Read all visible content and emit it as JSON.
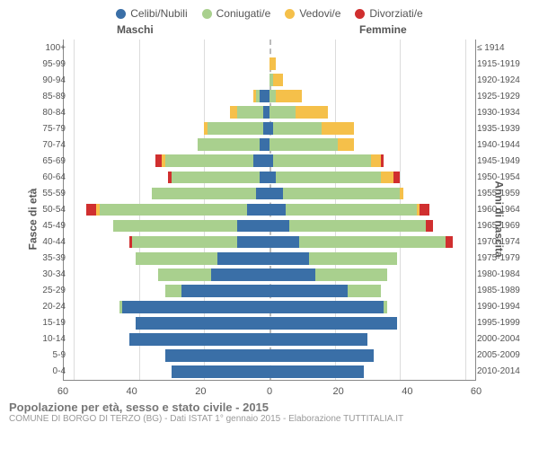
{
  "legend": [
    {
      "label": "Celibi/Nubili",
      "color": "#3a6fa7"
    },
    {
      "label": "Coniugati/e",
      "color": "#a9d08e"
    },
    {
      "label": "Vedovi/e",
      "color": "#f5c04a"
    },
    {
      "label": "Divorziati/e",
      "color": "#d02f2f"
    }
  ],
  "header_male": "Maschi",
  "header_female": "Femmine",
  "y_axis_left_title": "Fasce di età",
  "y_axis_right_title": "Anni di nascita",
  "footer_title": "Popolazione per età, sesso e stato civile - 2015",
  "footer_sub": "COMUNE DI BORGO DI TERZO (BG) - Dati ISTAT 1° gennaio 2015 - Elaborazione TUTTITALIA.IT",
  "x_ticks": [
    60,
    40,
    20,
    0,
    20,
    40,
    60
  ],
  "x_max": 63,
  "colors": {
    "axis": "#888888",
    "grid": "#dcdcdc",
    "background": "#ffffff",
    "text": "#555555",
    "centerline": "#bbbbbb"
  },
  "rows": [
    {
      "age": "100+",
      "birth": "≤ 1914",
      "m": [
        0,
        0,
        0,
        0
      ],
      "f": [
        0,
        0,
        0,
        0
      ]
    },
    {
      "age": "95-99",
      "birth": "1915-1919",
      "m": [
        0,
        0,
        0,
        0
      ],
      "f": [
        0,
        0,
        2,
        0
      ]
    },
    {
      "age": "90-94",
      "birth": "1920-1924",
      "m": [
        0,
        0,
        0,
        0
      ],
      "f": [
        0,
        1,
        3,
        0
      ]
    },
    {
      "age": "85-89",
      "birth": "1925-1929",
      "m": [
        3,
        1,
        1,
        0
      ],
      "f": [
        0,
        2,
        8,
        0
      ]
    },
    {
      "age": "80-84",
      "birth": "1930-1934",
      "m": [
        2,
        8,
        2,
        0
      ],
      "f": [
        0,
        8,
        10,
        0
      ]
    },
    {
      "age": "75-79",
      "birth": "1935-1939",
      "m": [
        2,
        17,
        1,
        0
      ],
      "f": [
        1,
        15,
        10,
        0
      ]
    },
    {
      "age": "70-74",
      "birth": "1940-1944",
      "m": [
        3,
        19,
        0,
        0
      ],
      "f": [
        0,
        21,
        5,
        0
      ]
    },
    {
      "age": "65-69",
      "birth": "1945-1949",
      "m": [
        5,
        27,
        1,
        2
      ],
      "f": [
        1,
        30,
        3,
        1
      ]
    },
    {
      "age": "60-64",
      "birth": "1950-1954",
      "m": [
        3,
        27,
        0,
        1
      ],
      "f": [
        2,
        32,
        4,
        2
      ]
    },
    {
      "age": "55-59",
      "birth": "1955-1959",
      "m": [
        4,
        32,
        0,
        0
      ],
      "f": [
        4,
        36,
        1,
        0
      ]
    },
    {
      "age": "50-54",
      "birth": "1960-1964",
      "m": [
        7,
        45,
        1,
        3
      ],
      "f": [
        5,
        40,
        1,
        3
      ]
    },
    {
      "age": "45-49",
      "birth": "1965-1969",
      "m": [
        10,
        38,
        0,
        0
      ],
      "f": [
        6,
        42,
        0,
        2
      ]
    },
    {
      "age": "40-44",
      "birth": "1970-1974",
      "m": [
        10,
        32,
        0,
        1
      ],
      "f": [
        9,
        45,
        0,
        2
      ]
    },
    {
      "age": "35-39",
      "birth": "1975-1979",
      "m": [
        16,
        25,
        0,
        0
      ],
      "f": [
        12,
        27,
        0,
        0
      ]
    },
    {
      "age": "30-34",
      "birth": "1980-1984",
      "m": [
        18,
        16,
        0,
        0
      ],
      "f": [
        14,
        22,
        0,
        0
      ]
    },
    {
      "age": "25-29",
      "birth": "1985-1989",
      "m": [
        27,
        5,
        0,
        0
      ],
      "f": [
        24,
        10,
        0,
        0
      ]
    },
    {
      "age": "20-24",
      "birth": "1990-1994",
      "m": [
        45,
        1,
        0,
        0
      ],
      "f": [
        35,
        1,
        0,
        0
      ]
    },
    {
      "age": "15-19",
      "birth": "1995-1999",
      "m": [
        41,
        0,
        0,
        0
      ],
      "f": [
        39,
        0,
        0,
        0
      ]
    },
    {
      "age": "10-14",
      "birth": "2000-2004",
      "m": [
        43,
        0,
        0,
        0
      ],
      "f": [
        30,
        0,
        0,
        0
      ]
    },
    {
      "age": "5-9",
      "birth": "2005-2009",
      "m": [
        32,
        0,
        0,
        0
      ],
      "f": [
        32,
        0,
        0,
        0
      ]
    },
    {
      "age": "0-4",
      "birth": "2010-2014",
      "m": [
        30,
        0,
        0,
        0
      ],
      "f": [
        29,
        0,
        0,
        0
      ]
    }
  ]
}
